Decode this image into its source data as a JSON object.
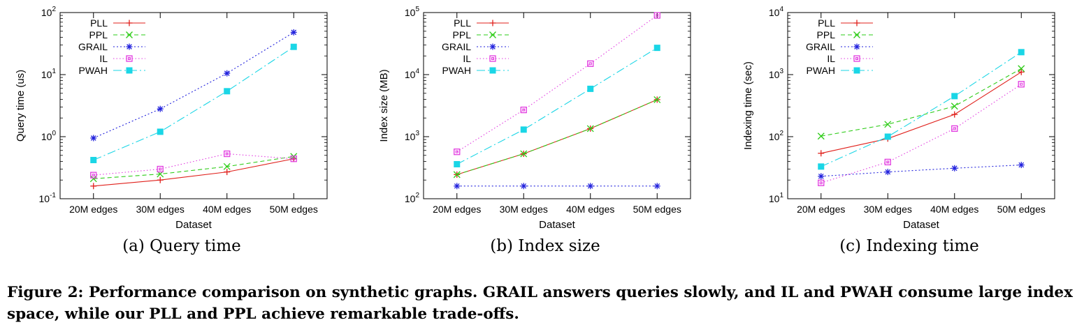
{
  "chart_data": [
    {
      "type": "line",
      "subcaption": "(a) Query time",
      "xlabel": "Dataset",
      "ylabel": "Query time (us)",
      "yscale": "log",
      "ylim": [
        0.1,
        100
      ],
      "yticks": [
        {
          "value": 0.1,
          "base": "10",
          "exp": "-1"
        },
        {
          "value": 1,
          "base": "10",
          "exp": "0"
        },
        {
          "value": 10,
          "base": "10",
          "exp": "1"
        },
        {
          "value": 100,
          "base": "10",
          "exp": "2"
        }
      ],
      "categories": [
        "20M edges",
        "30M edges",
        "40M edges",
        "50M edges"
      ],
      "legend_position": "top-left",
      "series": [
        {
          "name": "PLL",
          "values": [
            0.16,
            0.2,
            0.27,
            0.44
          ]
        },
        {
          "name": "PPL",
          "values": [
            0.21,
            0.25,
            0.33,
            0.48
          ]
        },
        {
          "name": "GRAIL",
          "values": [
            0.95,
            2.8,
            10.5,
            48
          ]
        },
        {
          "name": "IL",
          "values": [
            0.24,
            0.3,
            0.53,
            0.44
          ]
        },
        {
          "name": "PWAH",
          "values": [
            0.42,
            1.2,
            5.4,
            28
          ]
        }
      ]
    },
    {
      "type": "line",
      "subcaption": "(b) Index size",
      "xlabel": "Dataset",
      "ylabel": "Index size (MB)",
      "yscale": "log",
      "ylim": [
        100,
        100000
      ],
      "yticks": [
        {
          "value": 100,
          "base": "10",
          "exp": "2"
        },
        {
          "value": 1000,
          "base": "10",
          "exp": "3"
        },
        {
          "value": 10000,
          "base": "10",
          "exp": "4"
        },
        {
          "value": 100000,
          "base": "10",
          "exp": "5"
        }
      ],
      "categories": [
        "20M edges",
        "30M edges",
        "40M edges",
        "50M edges"
      ],
      "legend_position": "top-left",
      "series": [
        {
          "name": "PLL",
          "values": [
            245,
            530,
            1350,
            3950
          ]
        },
        {
          "name": "PPL",
          "values": [
            245,
            530,
            1350,
            3950
          ]
        },
        {
          "name": "GRAIL",
          "values": [
            160,
            160,
            160,
            160
          ]
        },
        {
          "name": "IL",
          "values": [
            570,
            2700,
            15000,
            90000
          ]
        },
        {
          "name": "PWAH",
          "values": [
            360,
            1300,
            5900,
            27000
          ]
        }
      ]
    },
    {
      "type": "line",
      "subcaption": "(c) Indexing time",
      "xlabel": "Dataset",
      "ylabel": "Indexing time (sec)",
      "yscale": "log",
      "ylim": [
        10,
        10000
      ],
      "yticks": [
        {
          "value": 10,
          "base": "10",
          "exp": "1"
        },
        {
          "value": 100,
          "base": "10",
          "exp": "2"
        },
        {
          "value": 1000,
          "base": "10",
          "exp": "3"
        },
        {
          "value": 10000,
          "base": "10",
          "exp": "4"
        }
      ],
      "categories": [
        "20M edges",
        "30M edges",
        "40M edges",
        "50M edges"
      ],
      "legend_position": "top-left",
      "series": [
        {
          "name": "PLL",
          "values": [
            54,
            93,
            228,
            1100
          ]
        },
        {
          "name": "PPL",
          "values": [
            102,
            158,
            310,
            1250
          ]
        },
        {
          "name": "GRAIL",
          "values": [
            23,
            27,
            31,
            35
          ]
        },
        {
          "name": "IL",
          "values": [
            18,
            39,
            135,
            700
          ]
        },
        {
          "name": "PWAH",
          "values": [
            33,
            100,
            450,
            2300
          ]
        }
      ]
    }
  ],
  "series_style": [
    {
      "name": "PLL",
      "color": "#e0201b",
      "marker": "plus",
      "dash": ""
    },
    {
      "name": "PPL",
      "color": "#2ecc18",
      "marker": "x",
      "dash": "6,4"
    },
    {
      "name": "GRAIL",
      "color": "#2222dd",
      "marker": "star",
      "dash": "2,3"
    },
    {
      "name": "IL",
      "color": "#e23ce0",
      "marker": "square-open",
      "dash": "1.5,3"
    },
    {
      "name": "PWAH",
      "color": "#1ad6e6",
      "marker": "square-filled",
      "dash": "12,4,2,4"
    }
  ],
  "caption": "Figure 2: Performance comparison on synthetic graphs. GRAIL answers queries slowly, and IL and PWAH consume large index space, while our PLL and PPL achieve remarkable trade-offs."
}
